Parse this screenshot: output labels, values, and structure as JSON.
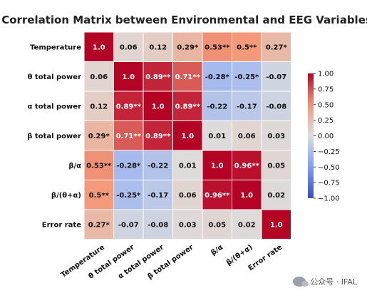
{
  "chart_data": {
    "type": "heatmap",
    "title": "Correlation Matrix between Environmental and EEG Variables",
    "row_labels": [
      "Temperature",
      "θ total power",
      "α total power",
      "β total power",
      "β/α",
      "β/(θ+α)",
      "Error rate"
    ],
    "col_labels": [
      "Temperature",
      "θ total power",
      "α total power",
      "β total power",
      "β/α",
      "β/(θ+α)",
      "Error rate"
    ],
    "values": [
      [
        1.0,
        0.06,
        0.12,
        0.29,
        0.53,
        0.5,
        0.27
      ],
      [
        0.06,
        1.0,
        0.89,
        0.71,
        -0.28,
        -0.25,
        -0.07
      ],
      [
        0.12,
        0.89,
        1.0,
        0.89,
        -0.22,
        -0.17,
        -0.08
      ],
      [
        0.29,
        0.71,
        0.89,
        1.0,
        0.01,
        0.06,
        0.03
      ],
      [
        0.53,
        -0.28,
        -0.22,
        0.01,
        1.0,
        0.96,
        0.05
      ],
      [
        0.5,
        -0.25,
        -0.17,
        0.06,
        0.96,
        1.0,
        0.02
      ],
      [
        0.27,
        -0.07,
        -0.08,
        0.03,
        0.05,
        0.02,
        1.0
      ]
    ],
    "annotations": [
      [
        "1.0",
        "0.06",
        "0.12",
        "0.29*",
        "0.53**",
        "0.5**",
        "0.27*"
      ],
      [
        "0.06",
        "1.0",
        "0.89**",
        "0.71**",
        "-0.28*",
        "-0.25*",
        "-0.07"
      ],
      [
        "0.12",
        "0.89**",
        "1.0",
        "0.89**",
        "-0.22",
        "-0.17",
        "-0.08"
      ],
      [
        "0.29*",
        "0.71**",
        "0.89**",
        "1.0",
        "0.01",
        "0.06",
        "0.03"
      ],
      [
        "0.53**",
        "-0.28*",
        "-0.22",
        "0.01",
        "1.0",
        "0.96**",
        "0.05"
      ],
      [
        "0.5**",
        "-0.25*",
        "-0.17",
        "0.06",
        "0.96**",
        "1.0",
        "0.02"
      ],
      [
        "0.27*",
        "-0.07",
        "-0.08",
        "0.03",
        "0.05",
        "0.02",
        "1.0"
      ]
    ],
    "colorbar": {
      "range": [
        -1.0,
        1.0
      ],
      "ticks": [
        "1.00",
        "0.75",
        "0.50",
        "0.25",
        "0.00",
        "−0.25",
        "−0.50",
        "−0.75",
        "−1.00"
      ],
      "tick_values": [
        1.0,
        0.75,
        0.5,
        0.25,
        0.0,
        -0.25,
        -0.5,
        -0.75,
        -1.0
      ]
    },
    "colormap": "coolwarm",
    "colors": {
      "low": "#3b4cc0",
      "mid": "#dddddd",
      "high": "#b40426"
    }
  },
  "watermark": {
    "text": "公众号 · IFAL",
    "icon": "wechat-icon"
  }
}
